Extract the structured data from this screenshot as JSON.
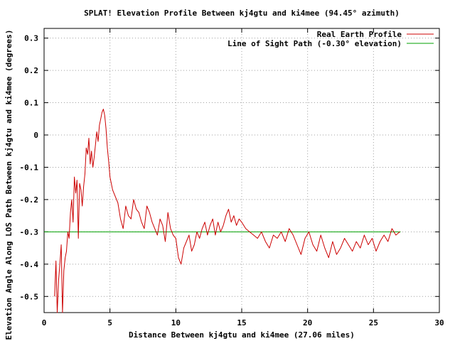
{
  "chart_data": {
    "type": "line",
    "title": "SPLAT! Elevation Profile Between kj4gtu and ki4mee (94.45° azimuth)",
    "xlabel": "Distance Between kj4gtu and ki4mee (27.06 miles)",
    "ylabel": "Elevation Angle Along LOS Path Between kj4gtu and ki4mee (degrees)",
    "xlim": [
      0,
      30
    ],
    "ylim": [
      -0.55,
      0.33
    ],
    "xticks": [
      0,
      5,
      10,
      15,
      20,
      25,
      30
    ],
    "xtick_labels": [
      "0",
      "5",
      "10",
      "15",
      "20",
      "25",
      "30"
    ],
    "yticks": [
      -0.5,
      -0.4,
      -0.3,
      -0.2,
      -0.1,
      0,
      0.1,
      0.2,
      0.3
    ],
    "ytick_labels": [
      "-0.5",
      "-0.4",
      "-0.3",
      "-0.2",
      "-0.1",
      "0",
      "0.1",
      "0.2",
      "0.3"
    ],
    "grid": true,
    "legend_position": "top-right",
    "series": [
      {
        "name": "Real Earth Profile",
        "color": "#cc0000",
        "x": [
          0.8,
          0.9,
          1.0,
          1.1,
          1.2,
          1.3,
          1.4,
          1.5,
          1.6,
          1.7,
          1.8,
          1.9,
          2.0,
          2.1,
          2.2,
          2.3,
          2.4,
          2.5,
          2.6,
          2.7,
          2.8,
          2.9,
          3.0,
          3.1,
          3.2,
          3.3,
          3.4,
          3.5,
          3.6,
          3.7,
          3.8,
          3.9,
          4.0,
          4.1,
          4.2,
          4.3,
          4.4,
          4.5,
          4.6,
          4.7,
          4.8,
          4.9,
          5.0,
          5.2,
          5.4,
          5.6,
          5.8,
          6.0,
          6.2,
          6.4,
          6.6,
          6.8,
          7.0,
          7.2,
          7.4,
          7.6,
          7.8,
          8.0,
          8.2,
          8.4,
          8.6,
          8.8,
          9.0,
          9.2,
          9.4,
          9.6,
          9.8,
          10.0,
          10.2,
          10.4,
          10.6,
          10.8,
          11.0,
          11.2,
          11.4,
          11.6,
          11.8,
          12.0,
          12.2,
          12.4,
          12.6,
          12.8,
          13.0,
          13.2,
          13.4,
          13.6,
          13.8,
          14.0,
          14.2,
          14.4,
          14.6,
          14.8,
          15.0,
          15.3,
          15.6,
          15.9,
          16.2,
          16.5,
          16.8,
          17.1,
          17.4,
          17.7,
          18.0,
          18.3,
          18.6,
          18.9,
          19.2,
          19.5,
          19.8,
          20.1,
          20.4,
          20.7,
          21.0,
          21.3,
          21.6,
          21.9,
          22.2,
          22.5,
          22.8,
          23.1,
          23.4,
          23.7,
          24.0,
          24.3,
          24.6,
          24.9,
          25.2,
          25.5,
          25.8,
          26.1,
          26.4,
          26.7,
          27.0
        ],
        "y": [
          -0.5,
          -0.39,
          -0.55,
          -0.45,
          -0.4,
          -0.34,
          -0.55,
          -0.42,
          -0.38,
          -0.36,
          -0.3,
          -0.32,
          -0.24,
          -0.2,
          -0.27,
          -0.13,
          -0.18,
          -0.14,
          -0.32,
          -0.15,
          -0.17,
          -0.22,
          -0.16,
          -0.12,
          -0.04,
          -0.06,
          -0.01,
          -0.09,
          -0.05,
          -0.1,
          -0.07,
          -0.03,
          0.01,
          -0.02,
          0.03,
          0.05,
          0.07,
          0.08,
          0.06,
          0.02,
          -0.04,
          -0.08,
          -0.13,
          -0.17,
          -0.19,
          -0.21,
          -0.26,
          -0.29,
          -0.22,
          -0.25,
          -0.26,
          -0.2,
          -0.23,
          -0.24,
          -0.27,
          -0.29,
          -0.22,
          -0.24,
          -0.27,
          -0.29,
          -0.31,
          -0.26,
          -0.28,
          -0.33,
          -0.24,
          -0.29,
          -0.31,
          -0.32,
          -0.38,
          -0.4,
          -0.35,
          -0.33,
          -0.31,
          -0.36,
          -0.34,
          -0.3,
          -0.32,
          -0.29,
          -0.27,
          -0.31,
          -0.28,
          -0.26,
          -0.31,
          -0.27,
          -0.3,
          -0.28,
          -0.25,
          -0.23,
          -0.27,
          -0.25,
          -0.28,
          -0.26,
          -0.27,
          -0.29,
          -0.3,
          -0.31,
          -0.32,
          -0.3,
          -0.33,
          -0.35,
          -0.31,
          -0.32,
          -0.3,
          -0.33,
          -0.29,
          -0.31,
          -0.34,
          -0.37,
          -0.32,
          -0.3,
          -0.34,
          -0.36,
          -0.31,
          -0.35,
          -0.38,
          -0.33,
          -0.37,
          -0.35,
          -0.32,
          -0.34,
          -0.36,
          -0.33,
          -0.35,
          -0.31,
          -0.34,
          -0.32,
          -0.36,
          -0.33,
          -0.31,
          -0.33,
          -0.29,
          -0.31,
          -0.3
        ]
      },
      {
        "name": "Line of Sight Path (-0.30° elevation)",
        "color": "#00a000",
        "x": [
          0,
          27.06
        ],
        "y": [
          -0.3,
          -0.3
        ]
      }
    ]
  }
}
